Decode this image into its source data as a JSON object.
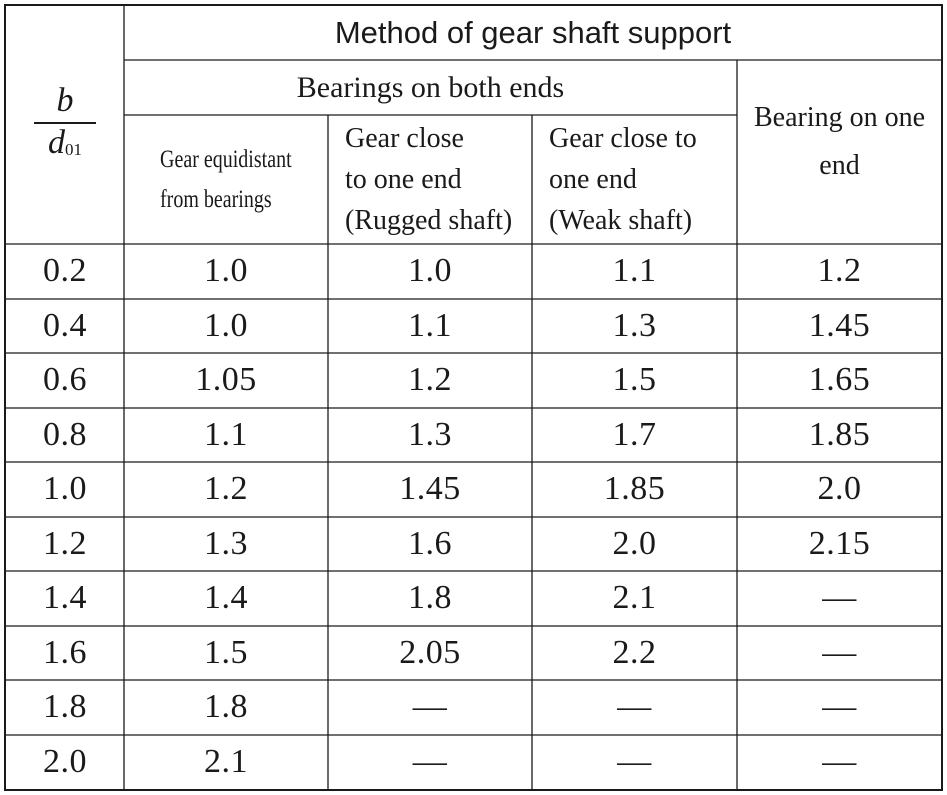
{
  "header": {
    "row_var_numerator": "b",
    "row_var_denominator": "d",
    "row_var_denominator_subscript": "01",
    "title": "Method of gear shaft support",
    "group_both_ends": "Bearings on both ends",
    "col_equidistant_line1": "Gear equidistant",
    "col_equidistant_line2": "from bearings",
    "col_rugged_line1": "Gear close",
    "col_rugged_line2": "to one end",
    "col_rugged_line3": "(Rugged shaft)",
    "col_weak_line1": "Gear close to",
    "col_weak_line2": "one end",
    "col_weak_line3": "(Weak shaft)",
    "col_one_end_line1": "Bearing on one",
    "col_one_end_line2": "end"
  },
  "rows": [
    {
      "ratio": "0.2",
      "equidistant": "1.0",
      "rugged": "1.0",
      "weak": "1.1",
      "one_end": "1.2"
    },
    {
      "ratio": "0.4",
      "equidistant": "1.0",
      "rugged": "1.1",
      "weak": "1.3",
      "one_end": "1.45"
    },
    {
      "ratio": "0.6",
      "equidistant": "1.05",
      "rugged": "1.2",
      "weak": "1.5",
      "one_end": "1.65"
    },
    {
      "ratio": "0.8",
      "equidistant": "1.1",
      "rugged": "1.3",
      "weak": "1.7",
      "one_end": "1.85"
    },
    {
      "ratio": "1.0",
      "equidistant": "1.2",
      "rugged": "1.45",
      "weak": "1.85",
      "one_end": "2.0"
    },
    {
      "ratio": "1.2",
      "equidistant": "1.3",
      "rugged": "1.6",
      "weak": "2.0",
      "one_end": "2.15"
    },
    {
      "ratio": "1.4",
      "equidistant": "1.4",
      "rugged": "1.8",
      "weak": "2.1",
      "one_end": "—"
    },
    {
      "ratio": "1.6",
      "equidistant": "1.5",
      "rugged": "2.05",
      "weak": "2.2",
      "one_end": "—"
    },
    {
      "ratio": "1.8",
      "equidistant": "1.8",
      "rugged": "—",
      "weak": "—",
      "one_end": "—"
    },
    {
      "ratio": "2.0",
      "equidistant": "2.1",
      "rugged": "—",
      "weak": "—",
      "one_end": "—"
    }
  ]
}
